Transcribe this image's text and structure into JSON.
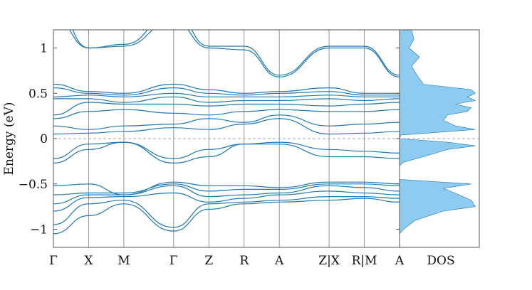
{
  "chart_data": {
    "type": "line",
    "ylabel": "Energy (eV)",
    "ylim": [
      -1.2,
      1.2
    ],
    "yticks": [
      {
        "value": 1,
        "label": "1"
      },
      {
        "value": 0.5,
        "label": "0.5"
      },
      {
        "value": 0,
        "label": "0"
      },
      {
        "value": -0.5,
        "label": "−0.5"
      },
      {
        "value": -1,
        "label": "−1"
      }
    ],
    "kpoints": [
      "Γ",
      "X",
      "M",
      "Γ",
      "Z",
      "R",
      "A",
      "Z|X",
      "R|M",
      "A"
    ],
    "kpath_segments": [
      1,
      1,
      1.414,
      1,
      1,
      1,
      1.414,
      1,
      1
    ],
    "fermi_level": 0,
    "dos_label": "DOS",
    "colors": {
      "band": "#1f77b4",
      "dos_fill": "#8ecbf0"
    },
    "bands": [
      [
        -1.05,
        -0.85,
        -0.72,
        -1.02,
        -0.78,
        -0.72,
        -0.7,
        -0.68,
        -0.66,
        -0.7
      ],
      [
        -0.95,
        -0.72,
        -0.68,
        -0.98,
        -0.72,
        -0.7,
        -0.68,
        -0.64,
        -0.64,
        -0.66
      ],
      [
        -0.8,
        -0.65,
        -0.64,
        -0.6,
        -0.7,
        -0.66,
        -0.62,
        -0.58,
        -0.6,
        -0.62
      ],
      [
        -0.72,
        -0.62,
        -0.62,
        -0.52,
        -0.64,
        -0.62,
        -0.6,
        -0.52,
        -0.54,
        -0.58
      ],
      [
        -0.62,
        -0.6,
        -0.6,
        -0.5,
        -0.58,
        -0.56,
        -0.56,
        -0.5,
        -0.5,
        -0.52
      ],
      [
        -0.52,
        -0.5,
        -0.62,
        -0.48,
        -0.52,
        -0.52,
        -0.54,
        -0.48,
        -0.48,
        -0.5
      ],
      [
        -0.27,
        -0.12,
        -0.04,
        -0.27,
        -0.2,
        -0.06,
        -0.06,
        -0.2,
        -0.2,
        -0.22
      ],
      [
        -0.22,
        -0.06,
        -0.04,
        -0.22,
        -0.12,
        -0.06,
        -0.04,
        -0.12,
        -0.14,
        -0.16
      ],
      [
        0.05,
        0.06,
        0.08,
        0.12,
        0.1,
        0.16,
        0.22,
        0.05,
        0.06,
        0.08
      ],
      [
        0.14,
        0.1,
        0.14,
        0.16,
        0.22,
        0.18,
        0.26,
        0.14,
        0.16,
        0.18
      ],
      [
        0.22,
        0.3,
        0.32,
        0.28,
        0.26,
        0.3,
        0.32,
        0.3,
        0.3,
        0.32
      ],
      [
        0.26,
        0.4,
        0.38,
        0.38,
        0.36,
        0.38,
        0.38,
        0.36,
        0.38,
        0.4
      ],
      [
        0.44,
        0.44,
        0.4,
        0.46,
        0.4,
        0.42,
        0.42,
        0.44,
        0.42,
        0.44
      ],
      [
        0.46,
        0.48,
        0.46,
        0.5,
        0.46,
        0.46,
        0.46,
        0.48,
        0.46,
        0.46
      ],
      [
        0.56,
        0.5,
        0.48,
        0.56,
        0.5,
        0.48,
        0.5,
        0.52,
        0.48,
        0.48
      ],
      [
        0.6,
        0.52,
        0.5,
        0.6,
        0.54,
        0.5,
        0.52,
        0.56,
        0.5,
        0.5
      ],
      [
        1.35,
        1.0,
        1.02,
        1.3,
        1.0,
        0.98,
        0.68,
        1.0,
        1.0,
        0.68
      ],
      [
        1.5,
        1.0,
        1.04,
        1.4,
        1.02,
        1.02,
        0.7,
        1.02,
        1.02,
        0.7
      ]
    ],
    "dos": {
      "energy": [
        -1.2,
        -1.05,
        -1.0,
        -0.9,
        -0.8,
        -0.75,
        -0.68,
        -0.62,
        -0.55,
        -0.5,
        -0.45,
        -0.3,
        -0.26,
        -0.2,
        -0.12,
        -0.08,
        -0.04,
        0.0,
        0.04,
        0.06,
        0.1,
        0.14,
        0.2,
        0.26,
        0.3,
        0.34,
        0.38,
        0.42,
        0.46,
        0.5,
        0.54,
        0.6,
        0.7,
        0.8,
        0.9,
        1.0,
        1.1,
        1.2
      ],
      "value": [
        0,
        0,
        0.05,
        0.2,
        0.55,
        0.95,
        0.9,
        0.75,
        0.55,
        0.9,
        0,
        0,
        0.05,
        0.3,
        0.6,
        0.95,
        0.6,
        0,
        0.02,
        0.35,
        0.95,
        0.7,
        0.55,
        0.6,
        0.85,
        0.9,
        0.7,
        0.95,
        0.85,
        0.95,
        0.9,
        0.3,
        0.22,
        0.15,
        0.25,
        0.12,
        0.18,
        0.15
      ]
    }
  }
}
